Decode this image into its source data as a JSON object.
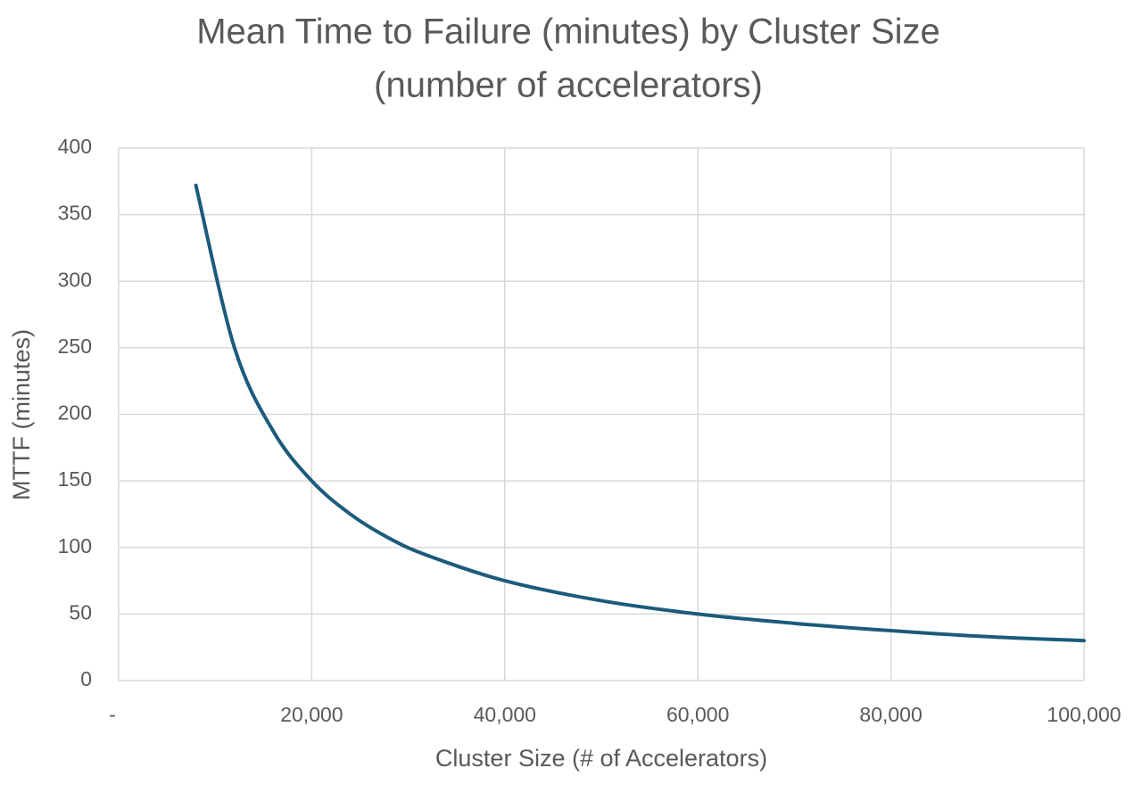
{
  "chart_data": {
    "type": "line",
    "title": [
      "Mean Time to Failure (minutes) by Cluster Size",
      "(number of accelerators)"
    ],
    "x_label": "Cluster Size (# of Accelerators)",
    "y_label": "MTTF (minutes)",
    "x": [
      8000,
      12000,
      16000,
      20000,
      24000,
      28000,
      32000,
      40000,
      50000,
      60000,
      70000,
      80000,
      90000,
      100000
    ],
    "series": [
      {
        "name": "MTTF",
        "color": "#1b5b7b",
        "values": [
          372,
          250,
          187.5,
          150,
          125,
          107,
          94,
          75,
          60,
          50,
          43,
          37.5,
          33,
          30
        ]
      }
    ],
    "xlim": [
      0,
      100000
    ],
    "xticks": [
      {
        "value": 0,
        "label": "-"
      },
      {
        "value": 20000,
        "label": "20,000"
      },
      {
        "value": 40000,
        "label": "40,000"
      },
      {
        "value": 60000,
        "label": "60,000"
      },
      {
        "value": 80000,
        "label": "80,000"
      },
      {
        "value": 100000,
        "label": "100,000"
      }
    ],
    "ylim": [
      0,
      400
    ],
    "yticks": [
      0,
      50,
      100,
      150,
      200,
      250,
      300,
      350,
      400
    ],
    "grid": true
  }
}
